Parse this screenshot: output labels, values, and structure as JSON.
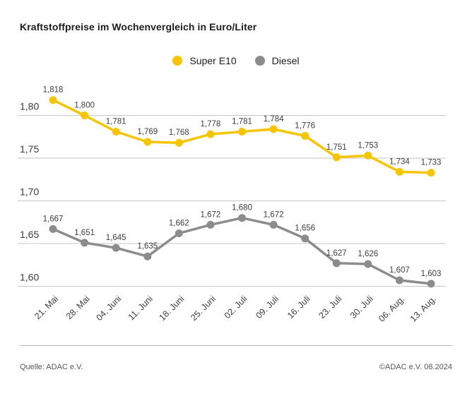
{
  "title": "Kraftstoffpreise im Wochenvergleich in Euro/Liter",
  "legend": [
    {
      "label": "Super E10",
      "color": "#f6c500"
    },
    {
      "label": "Diesel",
      "color": "#8c8c8c"
    }
  ],
  "footer": {
    "source": "Quelle: ADAC e.V.",
    "copyright": "©ADAC e.V. 08.2024"
  },
  "colors": {
    "super_e10": "#f6c500",
    "diesel": "#8c8c8c",
    "gridline": "#c6c6c6",
    "tick_text": "#3c3c3b",
    "label_text": "#3c3c3b"
  },
  "chart_data": {
    "type": "line",
    "title": "Kraftstoffpreise im Wochenvergleich in Euro/Liter",
    "xlabel": "",
    "ylabel": "Euro/Liter",
    "x": [
      "21. Mai",
      "28. Mai",
      "04. Juni",
      "11. Juni",
      "18. Juni",
      "25. Juni",
      "02. Juli",
      "09. Juli",
      "16. Juli",
      "23. Juli",
      "30. Juli",
      "06. Aug.",
      "13. Aug."
    ],
    "series": [
      {
        "name": "Super E10",
        "color": "#f6c500",
        "values": [
          1.818,
          1.8,
          1.781,
          1.769,
          1.768,
          1.778,
          1.781,
          1.784,
          1.776,
          1.751,
          1.753,
          1.734,
          1.733
        ],
        "labels": [
          "1,818",
          "1,800",
          "1,781",
          "1,769",
          "1,768",
          "1,778",
          "1,781",
          "1,784",
          "1,776",
          "1,751",
          "1,753",
          "1,734",
          "1,733"
        ]
      },
      {
        "name": "Diesel",
        "color": "#8c8c8c",
        "values": [
          1.667,
          1.651,
          1.645,
          1.635,
          1.662,
          1.672,
          1.68,
          1.672,
          1.656,
          1.627,
          1.626,
          1.607,
          1.603
        ],
        "labels": [
          "1,667",
          "1,651",
          "1,645",
          "1,635",
          "1,662",
          "1,672",
          "1,680",
          "1,672",
          "1,656",
          "1,627",
          "1,626",
          "1,607",
          "1,603"
        ]
      }
    ],
    "y_ticks": [
      "1,80",
      "1,75",
      "1,70",
      "1,65",
      "1,60"
    ],
    "y_tick_values": [
      1.8,
      1.75,
      1.7,
      1.65,
      1.6
    ],
    "ylim": [
      1.58,
      1.83
    ],
    "grid": "horizontal",
    "legend_position": "top-center"
  }
}
